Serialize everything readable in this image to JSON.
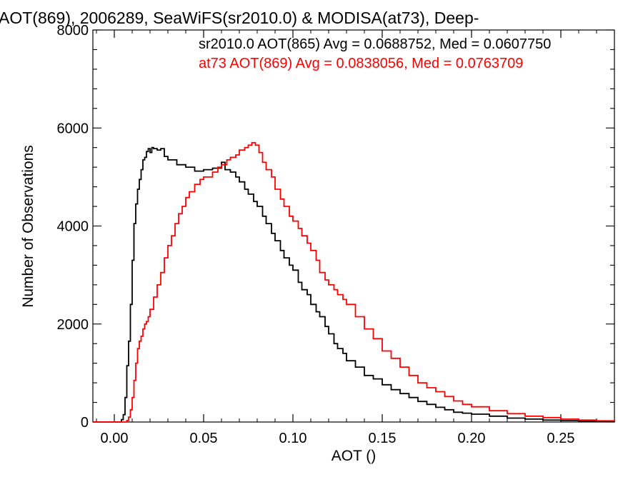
{
  "chart_data": {
    "type": "line",
    "title": "AOT(869), 2006289, SeaWiFS(sr2010.0) & MODISA(at73), Deep-",
    "xlabel": "AOT ()",
    "ylabel": "Number of Observations",
    "xlim": [
      -0.012,
      0.28
    ],
    "ylim": [
      0,
      8000
    ],
    "x_ticks": [
      0.0,
      0.05,
      0.1,
      0.15,
      0.2,
      0.25
    ],
    "x_tick_labels": [
      "0.00",
      "0.05",
      "0.10",
      "0.15",
      "0.20",
      "0.25"
    ],
    "y_ticks": [
      0,
      2000,
      4000,
      6000,
      8000
    ],
    "y_tick_labels": [
      "0",
      "2000",
      "4000",
      "6000",
      "8000"
    ],
    "grid": false,
    "legend_position": "top-right",
    "series": [
      {
        "name": "sr2010.0 AOT(865) Avg = 0.0688752, Med = 0.0607750",
        "color": "#000000",
        "x": [
          -0.012,
          0.0,
          0.002,
          0.004,
          0.005,
          0.006,
          0.007,
          0.008,
          0.009,
          0.01,
          0.011,
          0.012,
          0.013,
          0.014,
          0.015,
          0.016,
          0.017,
          0.018,
          0.019,
          0.02,
          0.021,
          0.022,
          0.024,
          0.026,
          0.028,
          0.03,
          0.035,
          0.04,
          0.045,
          0.05,
          0.055,
          0.06,
          0.062,
          0.065,
          0.068,
          0.07,
          0.073,
          0.075,
          0.078,
          0.08,
          0.083,
          0.085,
          0.088,
          0.09,
          0.093,
          0.095,
          0.098,
          0.1,
          0.103,
          0.105,
          0.108,
          0.11,
          0.113,
          0.115,
          0.118,
          0.12,
          0.123,
          0.125,
          0.128,
          0.13,
          0.135,
          0.14,
          0.145,
          0.15,
          0.155,
          0.16,
          0.165,
          0.17,
          0.175,
          0.18,
          0.185,
          0.19,
          0.195,
          0.2,
          0.21,
          0.22,
          0.23,
          0.24,
          0.25,
          0.26,
          0.27,
          0.28
        ],
        "y": [
          0,
          0,
          0,
          50,
          150,
          500,
          1150,
          1650,
          2400,
          3300,
          4050,
          4450,
          4750,
          4950,
          5150,
          5350,
          5400,
          5520,
          5580,
          5500,
          5600,
          5580,
          5550,
          5580,
          5420,
          5350,
          5250,
          5200,
          5120,
          5150,
          5180,
          5300,
          5150,
          5100,
          5000,
          4900,
          4750,
          4650,
          4500,
          4400,
          4200,
          4050,
          3850,
          3700,
          3500,
          3350,
          3200,
          3100,
          2850,
          2700,
          2600,
          2400,
          2250,
          2150,
          1950,
          1800,
          1600,
          1500,
          1400,
          1250,
          1120,
          950,
          880,
          760,
          660,
          580,
          500,
          420,
          360,
          300,
          250,
          200,
          180,
          160,
          120,
          80,
          60,
          40,
          30,
          20,
          10,
          5
        ]
      },
      {
        "name": "at73 AOT(869) Avg = 0.0838056, Med = 0.0763709",
        "color": "#ff0000",
        "x": [
          -0.012,
          0.005,
          0.007,
          0.008,
          0.009,
          0.01,
          0.011,
          0.012,
          0.013,
          0.014,
          0.015,
          0.016,
          0.017,
          0.018,
          0.019,
          0.02,
          0.022,
          0.024,
          0.026,
          0.028,
          0.03,
          0.032,
          0.034,
          0.036,
          0.038,
          0.04,
          0.042,
          0.045,
          0.048,
          0.05,
          0.053,
          0.055,
          0.058,
          0.06,
          0.063,
          0.065,
          0.068,
          0.07,
          0.073,
          0.075,
          0.077,
          0.079,
          0.081,
          0.083,
          0.085,
          0.088,
          0.09,
          0.093,
          0.095,
          0.098,
          0.1,
          0.103,
          0.105,
          0.108,
          0.11,
          0.113,
          0.115,
          0.118,
          0.12,
          0.123,
          0.125,
          0.128,
          0.13,
          0.135,
          0.14,
          0.145,
          0.15,
          0.155,
          0.16,
          0.165,
          0.17,
          0.175,
          0.18,
          0.185,
          0.19,
          0.195,
          0.2,
          0.21,
          0.22,
          0.23,
          0.24,
          0.25,
          0.26,
          0.27,
          0.28
        ],
        "y": [
          0,
          0,
          30,
          100,
          250,
          500,
          850,
          1200,
          1500,
          1650,
          1750,
          1900,
          2000,
          2050,
          2150,
          2300,
          2550,
          2800,
          3050,
          3350,
          3600,
          3800,
          4050,
          4250,
          4400,
          4580,
          4700,
          4850,
          4950,
          5000,
          5000,
          5100,
          5200,
          5250,
          5350,
          5400,
          5450,
          5550,
          5600,
          5650,
          5700,
          5650,
          5500,
          5300,
          5150,
          5000,
          4750,
          4550,
          4400,
          4200,
          4100,
          3950,
          3800,
          3650,
          3500,
          3300,
          3050,
          2900,
          2800,
          2700,
          2600,
          2500,
          2400,
          2150,
          1900,
          1700,
          1450,
          1300,
          1120,
          950,
          800,
          700,
          620,
          520,
          430,
          360,
          310,
          230,
          170,
          120,
          90,
          60,
          40,
          25,
          15
        ]
      }
    ]
  }
}
